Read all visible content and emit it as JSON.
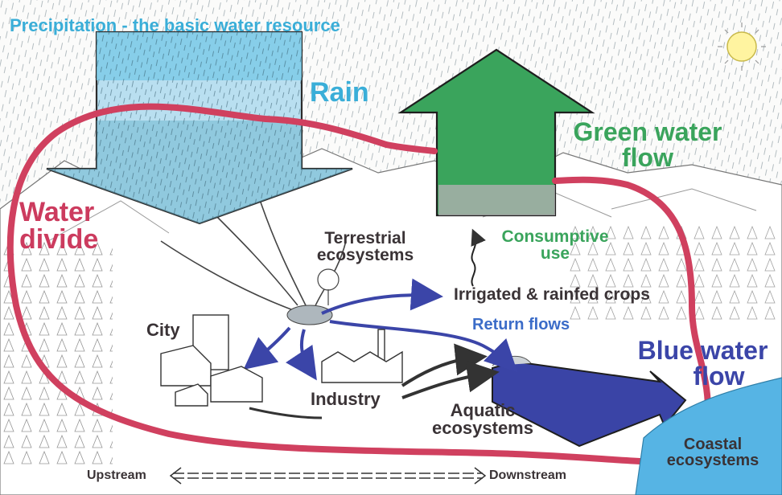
{
  "title": "Precipitation - the basic water resource",
  "labels": {
    "rain": "Rain",
    "green_flow": [
      "Green water",
      "flow"
    ],
    "water_divide": [
      "Water",
      "divide"
    ],
    "terrestrial": [
      "Terrestrial",
      "ecosystems"
    ],
    "consumptive": [
      "Consumptive",
      "use"
    ],
    "crops": "Irrigated & rainfed crops",
    "return_flows": "Return flows",
    "city": "City",
    "blue_flow": [
      "Blue water",
      "flow"
    ],
    "industry": "Industry",
    "aquatic": [
      "Aquatic",
      "ecosystems"
    ],
    "coastal": [
      "Coastal",
      "ecosystems"
    ],
    "upstream": "Upstream",
    "downstream": "Downstream"
  },
  "colors": {
    "title": "#3aaed8",
    "rain": "#3aaed8",
    "green_flow": "#3aa45c",
    "water_divide": "#cc3b5e",
    "blue_flow": "#3b45a8",
    "return_flows": "#3b6cc8",
    "consumptive": "#3aa45c",
    "dark_text": "#3a3336",
    "coastal_sea": "#56b4e4"
  }
}
